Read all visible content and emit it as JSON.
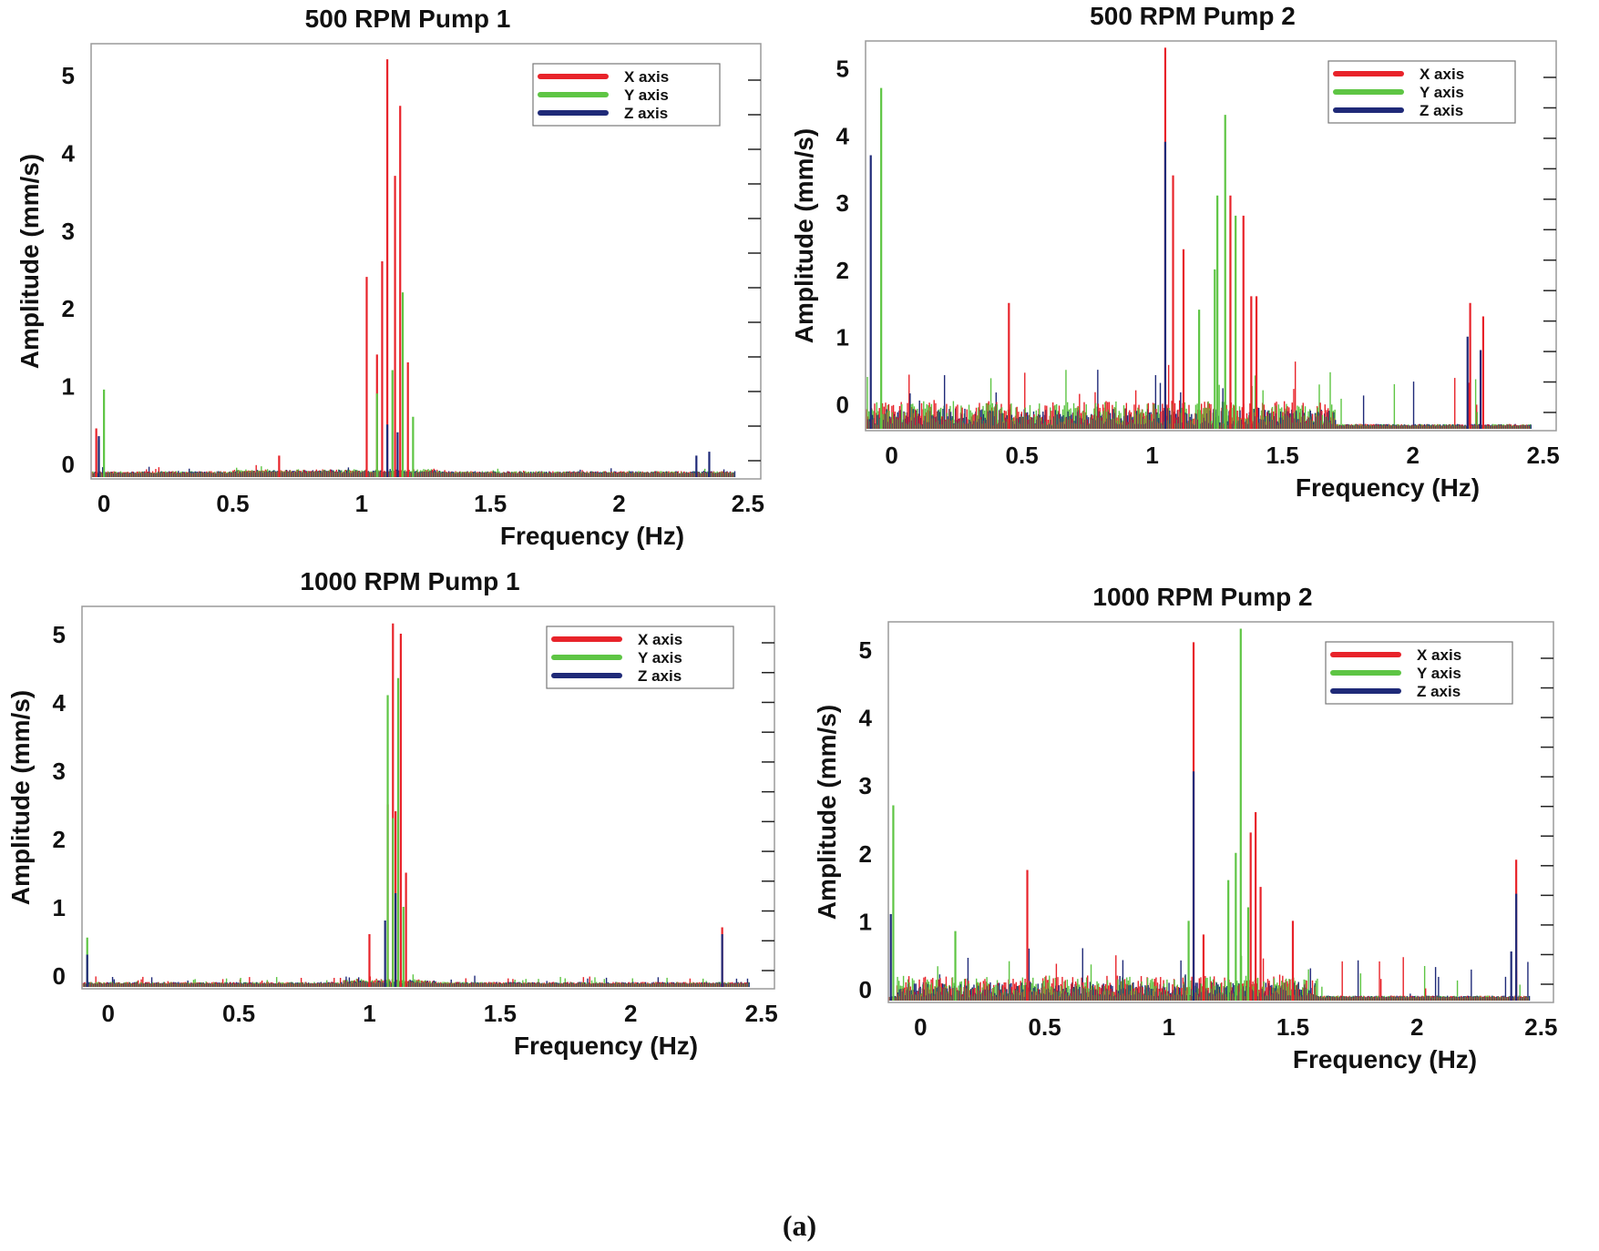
{
  "caption": "(a)",
  "colors": {
    "x": "#e8232a",
    "y": "#5ec544",
    "z": "#1f2a78"
  },
  "chart_data": [
    {
      "type": "bar",
      "title": "500 RPM Pump 1",
      "xlabel": "Frequency (Hz)",
      "ylabel": "Amplitude (mm/s)",
      "xlim": [
        -0.05,
        2.55
      ],
      "ylim": [
        -0.2,
        5.4
      ],
      "xticks": [
        "0",
        "0.5",
        "1",
        "1.5",
        "2",
        "2.5"
      ],
      "xtick_values": [
        0,
        0.5,
        1,
        1.5,
        2,
        2.5
      ],
      "yticks": [
        "0",
        "1",
        "2",
        "3",
        "4",
        "5"
      ],
      "ytick_values": [
        0,
        1,
        2,
        3,
        4,
        5
      ],
      "legend": [
        "X axis",
        "Y axis",
        "Z axis"
      ],
      "legend_position": "top-right",
      "noise_level": 0.03,
      "noise_range": [
        0.5,
        1.3
      ],
      "peaks": {
        "x": [
          [
            -0.03,
            0.45
          ],
          [
            1.02,
            2.4
          ],
          [
            1.06,
            1.4
          ],
          [
            1.08,
            2.6
          ],
          [
            1.1,
            5.2
          ],
          [
            1.13,
            3.7
          ],
          [
            1.15,
            4.6
          ],
          [
            1.18,
            1.3
          ],
          [
            0.68,
            0.1
          ]
        ],
        "y": [
          [
            0.0,
            0.95
          ],
          [
            1.06,
            0.9
          ],
          [
            1.12,
            1.2
          ],
          [
            1.16,
            2.2
          ],
          [
            1.2,
            0.6
          ],
          [
            -0.02,
            0.3
          ]
        ],
        "z": [
          [
            -0.02,
            0.35
          ],
          [
            1.1,
            0.5
          ],
          [
            1.14,
            0.4
          ],
          [
            2.3,
            0.1
          ],
          [
            2.35,
            0.15
          ]
        ]
      }
    },
    {
      "type": "bar",
      "title": "500 RPM Pump 2",
      "xlabel": "Frequency (Hz)",
      "ylabel": "Amplitude (mm/s)",
      "xlim": [
        -0.1,
        2.55
      ],
      "ylim": [
        -0.4,
        5.4
      ],
      "xticks": [
        "0",
        "0.5",
        "1",
        "1.5",
        "2",
        "2.5"
      ],
      "xtick_values": [
        0,
        0.5,
        1,
        1.5,
        2,
        2.5
      ],
      "yticks": [
        "0",
        "1",
        "2",
        "3",
        "4",
        "5"
      ],
      "ytick_values": [
        0,
        1,
        2,
        3,
        4,
        5
      ],
      "legend": [
        "X axis",
        "Y axis",
        "Z axis"
      ],
      "legend_position": "top-right",
      "noise_level": 0.35,
      "noise_range": [
        -0.1,
        1.7
      ],
      "peaks": {
        "x": [
          [
            0.45,
            1.5
          ],
          [
            1.05,
            5.3
          ],
          [
            1.08,
            3.4
          ],
          [
            1.12,
            2.3
          ],
          [
            1.3,
            3.1
          ],
          [
            1.35,
            2.8
          ],
          [
            1.38,
            1.6
          ],
          [
            1.4,
            1.6
          ],
          [
            2.22,
            1.5
          ],
          [
            2.27,
            1.3
          ]
        ],
        "y": [
          [
            -0.04,
            4.7
          ],
          [
            1.25,
            3.1
          ],
          [
            1.28,
            4.3
          ],
          [
            1.32,
            2.8
          ],
          [
            1.18,
            1.4
          ],
          [
            1.24,
            2.0
          ]
        ],
        "z": [
          [
            -0.08,
            3.7
          ],
          [
            1.05,
            3.9
          ],
          [
            2.21,
            1.0
          ],
          [
            2.26,
            0.8
          ]
        ]
      }
    },
    {
      "type": "bar",
      "title": "1000 RPM Pump 1",
      "xlabel": "Frequency (Hz)",
      "ylabel": "Amplitude (mm/s)",
      "xlim": [
        -0.1,
        2.55
      ],
      "ylim": [
        -0.2,
        5.4
      ],
      "xticks": [
        "0",
        "0.5",
        "1",
        "1.5",
        "2",
        "2.5"
      ],
      "xtick_values": [
        0,
        0.5,
        1,
        1.5,
        2,
        2.5
      ],
      "yticks": [
        "0",
        "1",
        "2",
        "3",
        "4",
        "5"
      ],
      "ytick_values": [
        0,
        1,
        2,
        3,
        4,
        5
      ],
      "legend": [
        "X axis",
        "Y axis",
        "Z axis"
      ],
      "legend_position": "top-right",
      "noise_level": 0.05,
      "noise_range": [
        0.9,
        1.25
      ],
      "peaks": {
        "x": [
          [
            1.09,
            5.15
          ],
          [
            1.12,
            5.0
          ],
          [
            1.07,
            2.5
          ],
          [
            1.1,
            2.4
          ],
          [
            1.14,
            1.5
          ],
          [
            1.0,
            0.6
          ],
          [
            2.35,
            0.7
          ]
        ],
        "y": [
          [
            1.07,
            4.1
          ],
          [
            1.11,
            4.35
          ],
          [
            1.09,
            2.3
          ],
          [
            -0.08,
            0.55
          ],
          [
            1.13,
            1.0
          ]
        ],
        "z": [
          [
            1.1,
            1.2
          ],
          [
            1.06,
            0.8
          ],
          [
            2.35,
            0.6
          ],
          [
            -0.08,
            0.3
          ]
        ]
      }
    },
    {
      "type": "bar",
      "title": "1000 RPM Pump 2",
      "xlabel": "Frequency (Hz)",
      "ylabel": "Amplitude (mm/s)",
      "xlim": [
        -0.13,
        2.55
      ],
      "ylim": [
        -0.2,
        5.4
      ],
      "xticks": [
        "0",
        "0.5",
        "1",
        "1.5",
        "2",
        "2.5"
      ],
      "xtick_values": [
        0,
        0.5,
        1,
        1.5,
        2,
        2.5
      ],
      "yticks": [
        "0",
        "1",
        "2",
        "3",
        "4",
        "5"
      ],
      "ytick_values": [
        0,
        1,
        2,
        3,
        4,
        5
      ],
      "legend": [
        "X axis",
        "Y axis",
        "Z axis"
      ],
      "legend_position": "top-right",
      "noise_level": 0.3,
      "noise_range": [
        -0.1,
        1.6
      ],
      "peaks": {
        "x": [
          [
            1.1,
            5.1
          ],
          [
            0.43,
            1.75
          ],
          [
            1.35,
            2.6
          ],
          [
            1.33,
            2.3
          ],
          [
            1.37,
            1.5
          ],
          [
            1.5,
            1.0
          ],
          [
            2.4,
            1.9
          ],
          [
            1.14,
            0.8
          ]
        ],
        "y": [
          [
            1.29,
            5.3
          ],
          [
            -0.11,
            2.7
          ],
          [
            1.24,
            1.6
          ],
          [
            1.27,
            2.0
          ],
          [
            1.32,
            1.2
          ],
          [
            1.08,
            1.0
          ],
          [
            0.14,
            0.85
          ]
        ],
        "z": [
          [
            1.1,
            3.2
          ],
          [
            2.4,
            1.4
          ],
          [
            -0.12,
            1.1
          ],
          [
            2.38,
            0.55
          ]
        ]
      }
    }
  ]
}
